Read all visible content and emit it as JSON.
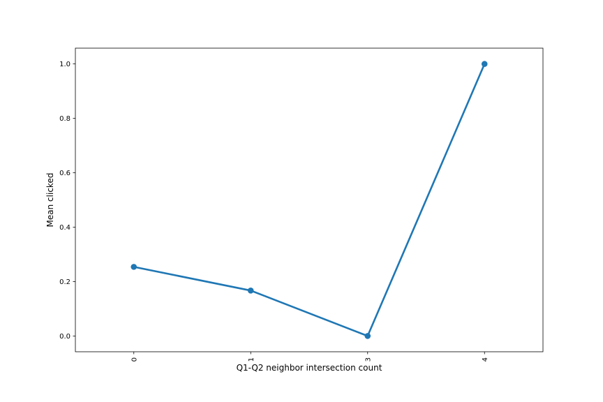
{
  "chart_data": {
    "type": "line",
    "title": "",
    "xlabel": "Q1-Q2 neighbor intersection count",
    "ylabel": "Mean clicked",
    "categories": [
      "0",
      "1",
      "3",
      "4"
    ],
    "series": [
      {
        "values": [
          0.254,
          0.167,
          0.0,
          1.0
        ]
      }
    ],
    "ylim": [
      -0.058,
      1.058
    ],
    "yticks": [
      "0.0",
      "0.2",
      "0.4",
      "0.6",
      "0.8",
      "1.0"
    ],
    "xtick_rotation": "vertical",
    "grid": false,
    "legend": "none",
    "colors": {
      "series": "#1f77b4",
      "axes": "#000000"
    }
  }
}
